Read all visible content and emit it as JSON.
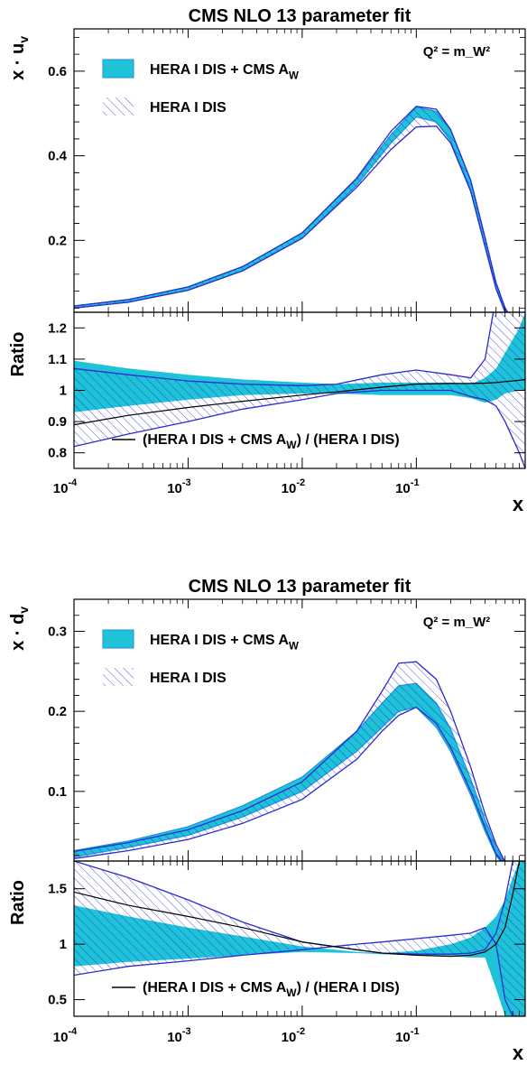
{
  "colors": {
    "band_fill": "#1fc3d8",
    "band_edge": "#1e90e0",
    "hatch_line": "#2b2bd0",
    "axis": "#000000"
  },
  "chart_data": [
    {
      "type": "line",
      "panel": "top",
      "title": "CMS NLO 13 parameter fit",
      "ylabel": "x · u_v",
      "xlabel": "x",
      "annotation": "Q² = m_W²",
      "x_scale": "log",
      "xlim": [
        0.0001,
        0.9
      ],
      "xticks": [
        {
          "value": 0.0001,
          "base": "10",
          "exp": "-4"
        },
        {
          "value": 0.001,
          "base": "10",
          "exp": "-3"
        },
        {
          "value": 0.01,
          "base": "10",
          "exp": "-2"
        },
        {
          "value": 0.1,
          "base": "10",
          "exp": "-1"
        }
      ],
      "legend": {
        "placement": "top-left",
        "entries": [
          {
            "text": "HERA I DIS + CMS A",
            "sub": "W",
            "style": "filled"
          },
          {
            "text": "HERA I DIS",
            "sub": "",
            "style": "hatched"
          }
        ]
      },
      "upper": {
        "ylim": [
          0.03,
          0.7
        ],
        "yticks": [
          "0.2",
          "0.4",
          "0.6"
        ],
        "x": [
          0.0001,
          0.0003,
          0.001,
          0.003,
          0.01,
          0.03,
          0.06,
          0.1,
          0.15,
          0.2,
          0.3,
          0.4,
          0.5,
          0.6,
          0.7
        ],
        "series": [
          {
            "name": "HERA I DIS + CMS A_W",
            "band_lo": [
              0.04,
              0.054,
              0.082,
              0.128,
              0.205,
              0.33,
              0.43,
              0.492,
              0.48,
              0.435,
              0.32,
              0.19,
              0.09,
              0.035,
              0.01
            ],
            "band_hi": [
              0.045,
              0.06,
              0.09,
              0.138,
              0.218,
              0.345,
              0.45,
              0.515,
              0.505,
              0.46,
              0.34,
              0.205,
              0.1,
              0.04,
              0.012
            ]
          },
          {
            "name": "HERA I DIS",
            "band_lo": [
              0.04,
              0.054,
              0.082,
              0.128,
              0.205,
              0.325,
              0.415,
              0.468,
              0.47,
              0.43,
              0.315,
              0.185,
              0.085,
              0.03,
              0.008
            ],
            "band_hi": [
              0.045,
              0.06,
              0.09,
              0.138,
              0.218,
              0.347,
              0.458,
              0.517,
              0.51,
              0.462,
              0.342,
              0.207,
              0.1,
              0.04,
              0.012
            ]
          }
        ]
      },
      "lower": {
        "ylabel": "Ratio",
        "ylim": [
          0.75,
          1.25
        ],
        "yticks": [
          "0.8",
          "0.9",
          "1",
          "1.1",
          "1.2"
        ],
        "x": [
          0.0001,
          0.0003,
          0.001,
          0.003,
          0.01,
          0.02,
          0.05,
          0.1,
          0.2,
          0.3,
          0.4,
          0.5,
          0.6,
          0.8,
          0.9
        ],
        "series": [
          {
            "name": "HERA I DIS + CMS A_W",
            "band_lo": [
              0.93,
              0.95,
              0.97,
              0.985,
              0.99,
              0.99,
              0.985,
              0.985,
              0.985,
              0.975,
              0.96,
              0.97,
              0.99,
              1.0,
              1.0
            ],
            "band_hi": [
              1.095,
              1.07,
              1.05,
              1.035,
              1.025,
              1.02,
              1.025,
              1.025,
              1.025,
              1.02,
              1.04,
              1.07,
              1.12,
              1.2,
              1.25
            ]
          },
          {
            "name": "HERA I DIS",
            "band_lo": [
              0.82,
              0.86,
              0.9,
              0.94,
              0.97,
              0.99,
              1.0,
              1.0,
              1.0,
              0.98,
              0.97,
              0.95,
              0.9,
              0.8,
              0.75
            ],
            "band_hi": [
              1.07,
              1.05,
              1.03,
              1.02,
              1.015,
              1.02,
              1.05,
              1.065,
              1.05,
              1.04,
              1.1,
              1.3,
              1.3,
              1.3,
              1.3
            ]
          },
          {
            "name": "(HERA I DIS + CMS A_W) / (HERA I DIS)",
            "values": [
              0.89,
              0.92,
              0.945,
              0.965,
              0.985,
              0.995,
              1.01,
              1.02,
              1.022,
              1.022,
              1.023,
              1.025,
              1.028,
              1.032,
              1.035
            ]
          }
        ],
        "ratio_label": {
          "pre": "(HERA I DIS + CMS A",
          "sub": "W",
          "post": ") / (HERA I DIS)"
        }
      }
    },
    {
      "type": "line",
      "panel": "bottom",
      "title": "CMS NLO 13 parameter fit",
      "ylabel": "x · d_v",
      "xlabel": "x",
      "annotation": "Q² = m_W²",
      "x_scale": "log",
      "xlim": [
        0.0001,
        0.9
      ],
      "xticks": [
        {
          "value": 0.0001,
          "base": "10",
          "exp": "-4"
        },
        {
          "value": 0.001,
          "base": "10",
          "exp": "-3"
        },
        {
          "value": 0.01,
          "base": "10",
          "exp": "-2"
        },
        {
          "value": 0.1,
          "base": "10",
          "exp": "-1"
        }
      ],
      "legend": {
        "placement": "top-left",
        "entries": [
          {
            "text": "HERA I DIS + CMS A",
            "sub": "W",
            "style": "filled"
          },
          {
            "text": "HERA I DIS",
            "sub": "",
            "style": "hatched"
          }
        ]
      },
      "upper": {
        "ylim": [
          0.013,
          0.34
        ],
        "yticks": [
          "0.1",
          "0.2",
          "0.3"
        ],
        "x": [
          0.0001,
          0.0003,
          0.001,
          0.003,
          0.01,
          0.03,
          0.05,
          0.07,
          0.1,
          0.15,
          0.2,
          0.3,
          0.4,
          0.5,
          0.6,
          0.7
        ],
        "series": [
          {
            "name": "HERA I DIS + CMS A_W",
            "band_lo": [
              0.018,
              0.03,
              0.045,
              0.068,
              0.1,
              0.15,
              0.18,
              0.2,
              0.205,
              0.18,
              0.15,
              0.095,
              0.05,
              0.02,
              0.005,
              0.0
            ],
            "band_hi": [
              0.026,
              0.038,
              0.056,
              0.082,
              0.118,
              0.175,
              0.21,
              0.232,
              0.235,
              0.21,
              0.178,
              0.115,
              0.065,
              0.03,
              0.01,
              0.002
            ]
          },
          {
            "name": "HERA I DIS",
            "band_lo": [
              0.016,
              0.026,
              0.04,
              0.06,
              0.09,
              0.14,
              0.175,
              0.195,
              0.205,
              0.185,
              0.155,
              0.1,
              0.055,
              0.022,
              0.007,
              0.001
            ],
            "band_hi": [
              0.025,
              0.036,
              0.052,
              0.076,
              0.112,
              0.175,
              0.225,
              0.26,
              0.262,
              0.24,
              0.2,
              0.13,
              0.072,
              0.034,
              0.012,
              0.003
            ]
          }
        ]
      },
      "lower": {
        "ylabel": "Ratio",
        "ylim": [
          0.35,
          1.75
        ],
        "yticks": [
          "0.5",
          "1",
          "1.5"
        ],
        "x": [
          0.0001,
          0.0003,
          0.001,
          0.003,
          0.01,
          0.03,
          0.05,
          0.1,
          0.2,
          0.3,
          0.4,
          0.5,
          0.6,
          0.7,
          0.8,
          0.9
        ],
        "series": [
          {
            "name": "HERA I DIS + CMS A_W",
            "band_lo": [
              0.8,
              0.84,
              0.87,
              0.9,
              0.93,
              0.92,
              0.91,
              0.9,
              0.89,
              0.88,
              0.88,
              0.6,
              0.35,
              0.35,
              0.35,
              0.35
            ],
            "band_hi": [
              1.35,
              1.25,
              1.15,
              1.07,
              0.98,
              0.93,
              0.92,
              0.94,
              1.0,
              1.06,
              1.15,
              1.25,
              1.4,
              1.6,
              1.75,
              1.75
            ]
          },
          {
            "name": "HERA I DIS",
            "band_lo": [
              0.72,
              0.8,
              0.85,
              0.9,
              0.95,
              1.0,
              1.02,
              1.05,
              1.08,
              1.1,
              1.15,
              1.0,
              0.5,
              0.35,
              0.35,
              0.35
            ],
            "band_hi": [
              1.75,
              1.6,
              1.4,
              1.2,
              1.02,
              0.95,
              0.92,
              0.91,
              0.91,
              0.92,
              0.95,
              1.1,
              1.4,
              1.75,
              1.75,
              1.75
            ]
          },
          {
            "name": "(HERA I DIS + CMS A_W) / (HERA I DIS)",
            "values": [
              1.47,
              1.35,
              1.25,
              1.15,
              1.02,
              0.95,
              0.92,
              0.9,
              0.89,
              0.9,
              0.93,
              1.0,
              1.15,
              1.45,
              1.75,
              1.75
            ]
          }
        ],
        "ratio_label": {
          "pre": "(HERA I DIS + CMS A",
          "sub": "W",
          "post": ") / (HERA I DIS)"
        }
      }
    }
  ]
}
